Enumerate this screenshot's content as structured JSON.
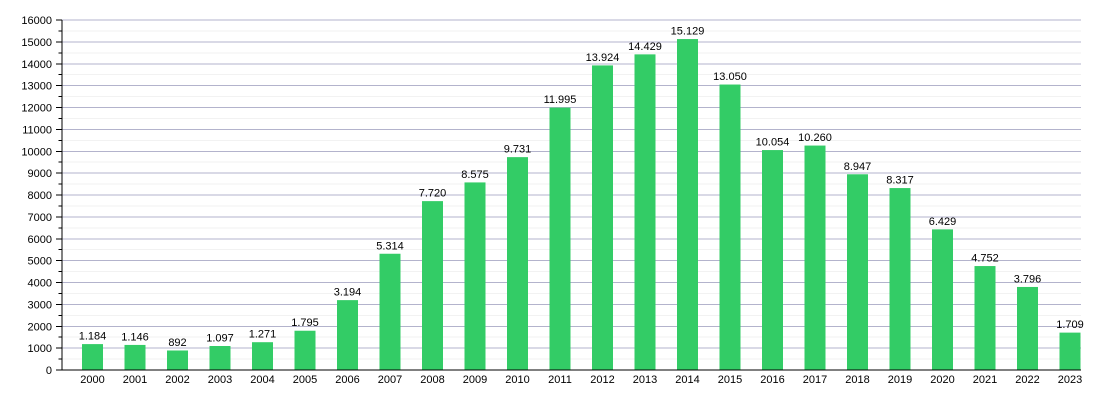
{
  "chart_data": {
    "type": "bar",
    "title": "",
    "xlabel": "",
    "ylabel": "",
    "categories": [
      "2000",
      "2001",
      "2002",
      "2003",
      "2004",
      "2005",
      "2006",
      "2007",
      "2008",
      "2009",
      "2010",
      "2011",
      "2012",
      "2013",
      "2014",
      "2015",
      "2016",
      "2017",
      "2018",
      "2019",
      "2020",
      "2021",
      "2022",
      "2023"
    ],
    "values": [
      1184,
      1146,
      892,
      1097,
      1271,
      1795,
      3194,
      5314,
      7720,
      8575,
      9731,
      11995,
      13924,
      14429,
      15129,
      13050,
      10054,
      10260,
      8947,
      8317,
      6429,
      4752,
      3796,
      1709
    ],
    "bar_labels": [
      "1.184",
      "1.146",
      "892",
      "1.097",
      "1.271",
      "1.795",
      "3.194",
      "5.314",
      "7.720",
      "8.575",
      "9.731",
      "11.995",
      "13.924",
      "14.429",
      "15.129",
      "13.050",
      "10.054",
      "10.260",
      "8.947",
      "8.317",
      "6.429",
      "4.752",
      "3.796",
      "1.709"
    ],
    "ylim": [
      0,
      16000
    ],
    "y_tick_step": 1000,
    "y_minor_step": 500,
    "y_tick_labels": [
      "0",
      "1000",
      "2000",
      "3000",
      "4000",
      "5000",
      "6000",
      "7000",
      "8000",
      "9000",
      "10000",
      "11000",
      "12000",
      "13000",
      "14000",
      "15000",
      "16000"
    ],
    "grid": true,
    "legend_position": "none",
    "colors": {
      "bar": "#33cc66",
      "grid_major": "#b3b3cc",
      "grid_minor": "#f2f2f2",
      "axis": "#000000",
      "text": "#000000"
    }
  }
}
